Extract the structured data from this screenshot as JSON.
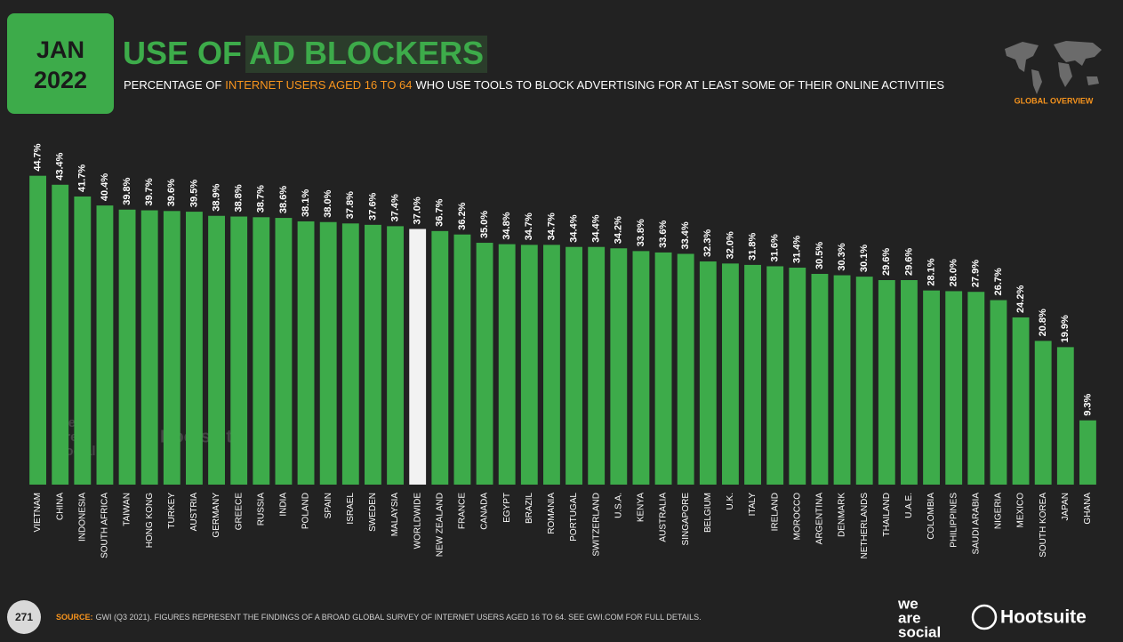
{
  "header": {
    "month": "JAN",
    "year": "2022",
    "title_lead": "USE OF",
    "title_highlight": "AD BLOCKERS",
    "subtitle": [
      "PERCENTAGE OF",
      "INTERNET USERS AGED 16 TO 64",
      "WHO USE TOOLS TO BLOCK ADVERTISING FOR AT LEAST SOME OF THEIR ONLINE ACTIVITIES"
    ],
    "badge": "GLOBAL OVERVIEW"
  },
  "chart_data": {
    "type": "bar",
    "categories": [
      "VIETNAM",
      "CHINA",
      "INDONESIA",
      "SOUTH AFRICA",
      "TAIWAN",
      "HONG KONG",
      "TURKEY",
      "AUSTRIA",
      "GERMANY",
      "GREECE",
      "RUSSIA",
      "INDIA",
      "POLAND",
      "SPAIN",
      "ISRAEL",
      "SWEDEN",
      "MALAYSIA",
      "WORLDWIDE",
      "NEW ZEALAND",
      "FRANCE",
      "CANADA",
      "EGYPT",
      "BRAZIL",
      "ROMANIA",
      "PORTUGAL",
      "SWITZERLAND",
      "U.S.A.",
      "KENYA",
      "AUSTRALIA",
      "SINGAPORE",
      "BELGIUM",
      "U.K.",
      "ITALY",
      "IRELAND",
      "MOROCCO",
      "ARGENTINA",
      "DENMARK",
      "NETHERLANDS",
      "THAILAND",
      "U.A.E.",
      "COLOMBIA",
      "PHILIPPINES",
      "SAUDI ARABIA",
      "NIGERIA",
      "MEXICO",
      "SOUTH KOREA",
      "JAPAN",
      "GHANA"
    ],
    "values": [
      44.7,
      43.4,
      41.7,
      40.4,
      39.8,
      39.7,
      39.6,
      39.5,
      38.9,
      38.8,
      38.7,
      38.6,
      38.1,
      38.0,
      37.8,
      37.6,
      37.4,
      37.0,
      36.7,
      36.2,
      35.0,
      34.8,
      34.7,
      34.7,
      34.4,
      34.4,
      34.2,
      33.8,
      33.6,
      33.4,
      32.3,
      32.0,
      31.8,
      31.6,
      31.4,
      30.5,
      30.3,
      30.1,
      29.6,
      29.6,
      28.1,
      28.0,
      27.9,
      26.7,
      24.2,
      20.8,
      19.9,
      9.3
    ],
    "value_labels": [
      "44.7%",
      "43.4%",
      "41.7%",
      "40.4%",
      "39.8%",
      "39.7%",
      "39.6%",
      "39.5%",
      "38.9%",
      "38.8%",
      "38.7%",
      "38.6%",
      "38.1%",
      "38.0%",
      "37.8%",
      "37.6%",
      "37.4%",
      "37.0%",
      "36.7%",
      "36.2%",
      "35.0%",
      "34.8%",
      "34.7%",
      "34.7%",
      "34.4%",
      "34.4%",
      "34.2%",
      "33.8%",
      "33.6%",
      "33.4%",
      "32.3%",
      "32.0%",
      "31.8%",
      "31.6%",
      "31.4%",
      "30.5%",
      "30.3%",
      "30.1%",
      "29.6%",
      "29.6%",
      "28.1%",
      "28.0%",
      "27.9%",
      "26.7%",
      "24.2%",
      "20.8%",
      "19.9%",
      "9.3%"
    ],
    "color": "#3dab4a",
    "highlight_color": "#f2f2f2",
    "highlight_category": "WORLDWIDE"
  },
  "footer": {
    "page": "271",
    "source_label": "SOURCE:",
    "source_text": "GWI (Q3 2021). FIGURES REPRESENT THE FINDINGS OF A BROAD GLOBAL SURVEY OF INTERNET USERS AGED 16 TO 64. SEE GWI.COM FOR FULL DETAILS.",
    "logo_1": [
      "we",
      "are",
      "social"
    ],
    "logo_2": "Hootsuite"
  }
}
